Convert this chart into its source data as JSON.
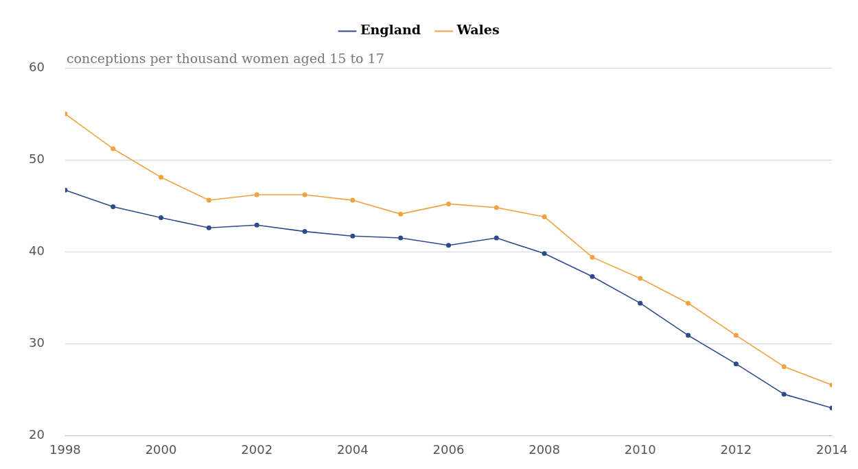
{
  "chart_data": {
    "type": "line",
    "ylabel": "conceptions per thousand women aged 15 to 17",
    "x": [
      1998,
      1999,
      2000,
      2001,
      2002,
      2003,
      2004,
      2005,
      2006,
      2007,
      2008,
      2009,
      2010,
      2011,
      2012,
      2013,
      2014
    ],
    "series": [
      {
        "name": "England",
        "color": "#2d4a8c",
        "values": [
          46.7,
          44.9,
          43.7,
          42.6,
          42.9,
          42.2,
          41.7,
          41.5,
          40.7,
          41.5,
          39.8,
          37.3,
          34.4,
          30.9,
          27.8,
          24.5,
          23.0
        ]
      },
      {
        "name": "Wales",
        "color": "#f0a240",
        "values": [
          55.0,
          51.2,
          48.1,
          45.6,
          46.2,
          46.2,
          45.6,
          44.1,
          45.2,
          44.8,
          43.8,
          39.4,
          37.1,
          34.4,
          30.9,
          27.5,
          25.5
        ]
      }
    ],
    "xlim": [
      1998,
      2014
    ],
    "xticks": [
      1998,
      2000,
      2002,
      2004,
      2006,
      2008,
      2010,
      2012,
      2014
    ],
    "ylim": [
      20,
      60
    ],
    "yticks": [
      20,
      30,
      40,
      50,
      60
    ],
    "grid": "y",
    "legend": "top",
    "marker": "circle",
    "line_style": "solid"
  }
}
